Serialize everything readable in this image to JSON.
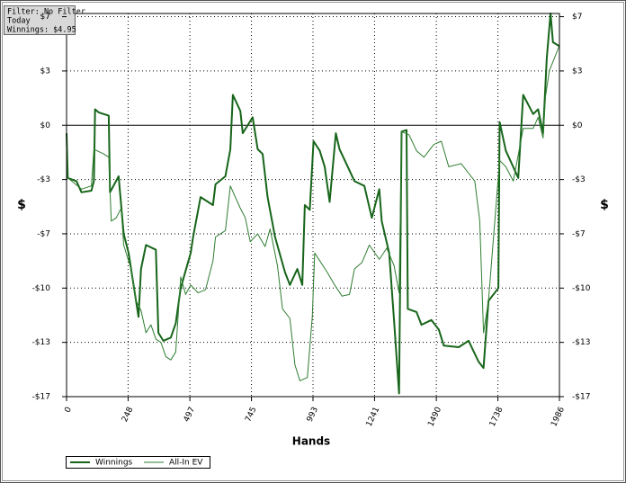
{
  "chart_data": {
    "type": "line",
    "annotations": [
      "Filter: No Filter",
      "Today",
      "Winnings: $4.95"
    ],
    "xlabel": "Hands",
    "ylabel": "$",
    "y2label": "$",
    "xlim": [
      0,
      1986
    ],
    "xticks": [
      0,
      248,
      497,
      745,
      993,
      1241,
      1490,
      1738,
      1986
    ],
    "ylim": [
      -17,
      7
    ],
    "yticks": [
      {
        "value": -17,
        "label": "-$17"
      },
      {
        "value": -13.6,
        "label": "-$13"
      },
      {
        "value": -10.2,
        "label": "-$10"
      },
      {
        "value": -6.8,
        "label": "-$7"
      },
      {
        "value": -3.4,
        "label": "-$3"
      },
      {
        "value": 0,
        "label": "$0"
      },
      {
        "value": 3.4,
        "label": "$3"
      },
      {
        "value": 6.8,
        "label": "$7"
      }
    ],
    "grid": true,
    "legend": "bottom-left",
    "series": [
      {
        "name": "Winnings",
        "color": "#17651a",
        "x": [
          0,
          5,
          40,
          60,
          100,
          110,
          115,
          130,
          170,
          175,
          210,
          230,
          250,
          270,
          290,
          300,
          320,
          360,
          370,
          390,
          420,
          440,
          460,
          500,
          510,
          540,
          590,
          600,
          640,
          660,
          670,
          700,
          710,
          750,
          770,
          790,
          810,
          840,
          880,
          900,
          930,
          950,
          960,
          980,
          995,
          1020,
          1040,
          1060,
          1085,
          1100,
          1130,
          1160,
          1200,
          1230,
          1260,
          1270,
          1300,
          1320,
          1340,
          1350,
          1370,
          1375,
          1410,
          1430,
          1470,
          1500,
          1520,
          1580,
          1620,
          1660,
          1680,
          1700,
          1740,
          1745,
          1770,
          1820,
          1840,
          1880,
          1900,
          1920,
          1935,
          1950,
          1960,
          1986
        ],
        "values": [
          -0.5,
          -3.3,
          -3.5,
          -4.2,
          -4.1,
          -3.5,
          1.0,
          0.8,
          0.6,
          -4.2,
          -3.2,
          -6.8,
          -8,
          -10,
          -12,
          -9,
          -7.5,
          -7.8,
          -13,
          -13.5,
          -13.3,
          -12.4,
          -10.2,
          -8,
          -7,
          -4.5,
          -5,
          -3.7,
          -3.2,
          -1.5,
          1.9,
          0.9,
          -0.5,
          0.5,
          -1.5,
          -1.8,
          -4.5,
          -7,
          -9.2,
          -10,
          -9,
          -10,
          -5,
          -5.3,
          -1.0,
          -1.6,
          -2.6,
          -4.8,
          -0.5,
          -1.5,
          -2.5,
          -3.5,
          -3.8,
          -5.8,
          -4,
          -6,
          -8,
          -12.3,
          -16.8,
          -0.4,
          -0.3,
          -11.5,
          -11.7,
          -12.5,
          -12.2,
          -12.8,
          -13.8,
          -13.9,
          -13.5,
          -14.8,
          -15.2,
          -11,
          -10.2,
          0.2,
          -1.6,
          -3.3,
          1.9,
          0.7,
          1,
          -0.5,
          4.2,
          7,
          5.2,
          4.95
        ]
      },
      {
        "name": "All-In EV",
        "color": "#2f7d30",
        "x": [
          0,
          5,
          60,
          100,
          110,
          150,
          170,
          180,
          200,
          220,
          230,
          260,
          280,
          300,
          320,
          340,
          360,
          380,
          400,
          420,
          440,
          460,
          480,
          500,
          530,
          560,
          590,
          600,
          640,
          660,
          680,
          700,
          720,
          740,
          770,
          800,
          820,
          850,
          870,
          900,
          920,
          940,
          970,
          990,
          1000,
          1050,
          1080,
          1110,
          1140,
          1160,
          1190,
          1220,
          1260,
          1290,
          1320,
          1340,
          1350,
          1380,
          1410,
          1440,
          1480,
          1510,
          1540,
          1590,
          1620,
          1645,
          1665,
          1680,
          1700,
          1745,
          1770,
          1800,
          1840,
          1880,
          1900,
          1920,
          1930,
          1945,
          1986
        ],
        "values": [
          -0.5,
          -3.3,
          -4,
          -3.8,
          -1.5,
          -1.8,
          -2,
          -6,
          -5.8,
          -5.2,
          -7.5,
          -9,
          -11,
          -11.6,
          -13,
          -12.5,
          -13.4,
          -13.6,
          -14.5,
          -14.7,
          -14.2,
          -9.5,
          -10.6,
          -10,
          -10.5,
          -10.3,
          -8.5,
          -7,
          -6.6,
          -3.8,
          -4.5,
          -5.2,
          -5.8,
          -7.3,
          -6.8,
          -7.6,
          -6.5,
          -8.8,
          -11.5,
          -12.1,
          -15,
          -16,
          -15.8,
          -12,
          -8,
          -9.2,
          -10,
          -10.7,
          -10.6,
          -9,
          -8.6,
          -7.5,
          -8.4,
          -7.7,
          -8.8,
          -10.5,
          -0.4,
          -0.6,
          -1.6,
          -2,
          -1.2,
          -1,
          -2.6,
          -2.4,
          -3,
          -3.5,
          -6,
          -13,
          -11,
          -2.2,
          -2.6,
          -3.5,
          -0.2,
          -0.2,
          0.5,
          -0.8,
          1.8,
          3.4,
          5
        ]
      }
    ]
  }
}
